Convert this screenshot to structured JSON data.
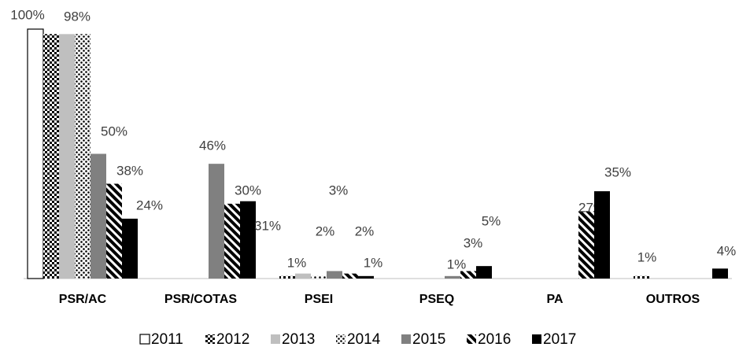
{
  "chart_data": {
    "type": "bar",
    "categories": [
      "PSR/AC",
      "PSR/COTAS",
      "PSEI",
      "PSEQ",
      "PA",
      "OUTROS"
    ],
    "ylim": [
      0,
      100
    ],
    "series": [
      {
        "name": "2011",
        "color": "#ffffff",
        "values": [
          100,
          0,
          0,
          0,
          0,
          0
        ],
        "value_labels": [
          "100%",
          null,
          null,
          null,
          null,
          null
        ]
      },
      {
        "name": "2012",
        "color": "#000000",
        "values": [
          98,
          0,
          1,
          0,
          0,
          1
        ],
        "value_labels": [
          null,
          null,
          "1%",
          null,
          null,
          "1%"
        ]
      },
      {
        "name": "2013",
        "color": "#bfbfbf",
        "values": [
          98,
          0,
          2,
          0,
          0,
          0
        ],
        "value_labels": [
          "98%",
          null,
          "2%",
          null,
          null,
          null
        ]
      },
      {
        "name": "2014",
        "color": "#000000",
        "values": [
          98,
          0,
          1,
          0,
          0,
          0
        ],
        "value_labels": [
          null,
          null,
          null,
          null,
          null,
          null
        ]
      },
      {
        "name": "2015",
        "color": "#808080",
        "values": [
          50,
          46,
          3,
          1,
          0,
          0
        ],
        "value_labels": [
          "50%",
          "46%",
          "3%",
          "1%",
          null,
          null
        ]
      },
      {
        "name": "2016",
        "color": "#000000",
        "values": [
          38,
          30,
          2,
          3,
          27,
          0
        ],
        "value_labels": [
          "38%",
          "30%",
          "2%",
          "3%",
          "27%",
          null
        ]
      },
      {
        "name": "2017",
        "color": "#000000",
        "values": [
          24,
          31,
          1,
          5,
          35,
          4
        ],
        "value_labels": [
          "24%",
          "31%",
          "1%",
          "5%",
          "35%",
          "4%"
        ]
      }
    ]
  }
}
